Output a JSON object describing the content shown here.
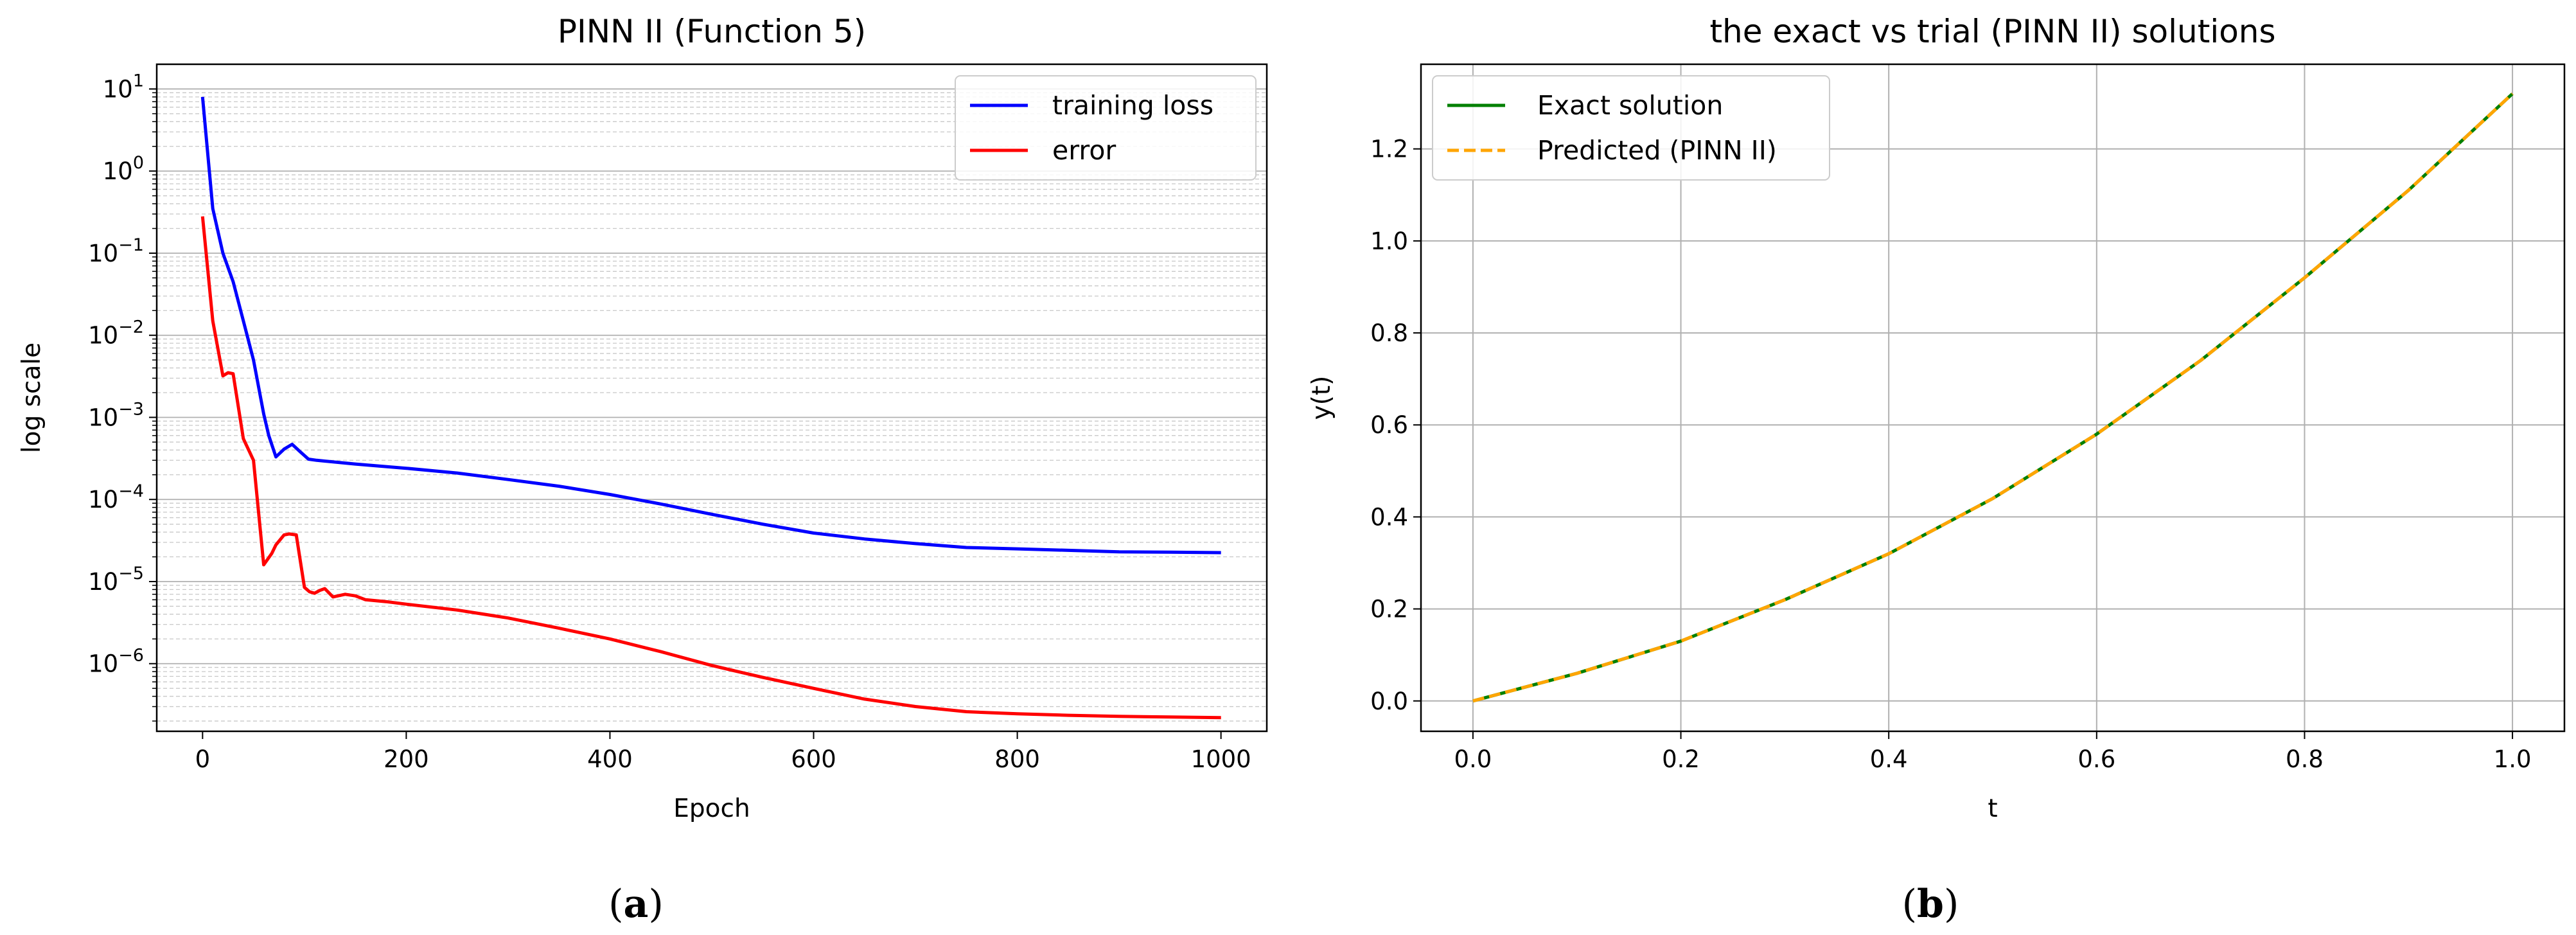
{
  "charts": [
    {
      "caption_label": "(a)",
      "chart_data": {
        "type": "line",
        "title": "PINN II (Function 5)",
        "xlabel": "Epoch",
        "ylabel": "log scale",
        "yscale": "log",
        "xlim": [
          -45,
          1045
        ],
        "ylim": [
          1.5e-07,
          20
        ],
        "xticks": [
          0,
          200,
          400,
          600,
          800,
          1000
        ],
        "xtick_labels": [
          "0",
          "200",
          "400",
          "600",
          "800",
          "1000"
        ],
        "ytick_exponents": [
          1,
          0,
          -1,
          -2,
          -3,
          -4,
          -5,
          -6
        ],
        "ytick_labels": [
          {
            "base": "10",
            "exp": "1"
          },
          {
            "base": "10",
            "exp": "0"
          },
          {
            "base": "10",
            "exp": "−1"
          },
          {
            "base": "10",
            "exp": "−2"
          },
          {
            "base": "10",
            "exp": "−3"
          },
          {
            "base": "10",
            "exp": "−4"
          },
          {
            "base": "10",
            "exp": "−5"
          },
          {
            "base": "10",
            "exp": "−6"
          }
        ],
        "grid": "major and minor",
        "legend_position": "top-right",
        "series": [
          {
            "name": "training loss",
            "color": "#0000ff",
            "x": [
              0,
              10,
              20,
              30,
              40,
              50,
              60,
              65,
              72,
              80,
              88,
              96,
              104,
              112,
              150,
              200,
              250,
              300,
              350,
              400,
              450,
              500,
              550,
              600,
              650,
              700,
              750,
              800,
              850,
              900,
              950,
              1000
            ],
            "y": [
              8,
              0.35,
              0.1,
              0.045,
              0.015,
              0.005,
              0.0011,
              0.0006,
              0.00033,
              0.00041,
              0.00047,
              0.00038,
              0.00031,
              0.0003,
              0.00027,
              0.00024,
              0.00021,
              0.000175,
              0.000145,
              0.000115,
              8.8e-05,
              6.6e-05,
              5e-05,
              3.9e-05,
              3.3e-05,
              2.9e-05,
              2.6e-05,
              2.5e-05,
              2.4e-05,
              2.3e-05,
              2.28e-05,
              2.25e-05
            ]
          },
          {
            "name": "error",
            "color": "#ff0000",
            "x": [
              0,
              10,
              20,
              25,
              30,
              40,
              50,
              60,
              68,
              72,
              80,
              85,
              92,
              100,
              105,
              110,
              115,
              120,
              128,
              140,
              150,
              160,
              180,
              200,
              250,
              300,
              350,
              400,
              450,
              500,
              550,
              600,
              650,
              700,
              750,
              800,
              850,
              900,
              950,
              1000
            ],
            "y": [
              0.28,
              0.015,
              0.0032,
              0.0035,
              0.0034,
              0.00055,
              0.0003,
              1.6e-05,
              2.2e-05,
              2.8e-05,
              3.7e-05,
              3.8e-05,
              3.7e-05,
              8.5e-06,
              7.5e-06,
              7.2e-06,
              7.8e-06,
              8.2e-06,
              6.5e-06,
              7e-06,
              6.7e-06,
              6e-06,
              5.7e-06,
              5.3e-06,
              4.5e-06,
              3.6e-06,
              2.7e-06,
              2e-06,
              1.4e-06,
              9.5e-07,
              6.8e-07,
              5e-07,
              3.7e-07,
              3e-07,
              2.6e-07,
              2.45e-07,
              2.35e-07,
              2.28e-07,
              2.24e-07,
              2.2e-07
            ]
          }
        ]
      }
    },
    {
      "caption_label": "(b)",
      "chart_data": {
        "type": "line",
        "title": "the exact vs trial (PINN II) solutions",
        "xlabel": "t",
        "ylabel": "y(t)",
        "xlim": [
          -0.05,
          1.05
        ],
        "ylim": [
          -0.066,
          1.384
        ],
        "xticks": [
          0.0,
          0.2,
          0.4,
          0.6,
          0.8,
          1.0
        ],
        "xtick_labels": [
          "0.0",
          "0.2",
          "0.4",
          "0.6",
          "0.8",
          "1.0"
        ],
        "yticks": [
          0.0,
          0.2,
          0.4,
          0.6,
          0.8,
          1.0,
          1.2
        ],
        "ytick_labels": [
          "0.0",
          "0.2",
          "0.4",
          "0.6",
          "0.8",
          "1.0",
          "1.2"
        ],
        "grid": true,
        "legend_position": "top-left",
        "series": [
          {
            "name": "Exact solution",
            "color": "#008000",
            "style": "solid",
            "x": [
              0.0,
              0.1,
              0.2,
              0.3,
              0.4,
              0.5,
              0.6,
              0.7,
              0.8,
              0.9,
              1.0
            ],
            "y": [
              0.0,
              0.06,
              0.13,
              0.22,
              0.32,
              0.44,
              0.58,
              0.74,
              0.92,
              1.11,
              1.32
            ]
          },
          {
            "name": "Predicted (PINN II)",
            "color": "#ffa500",
            "style": "dashed",
            "x": [
              0.0,
              0.1,
              0.2,
              0.3,
              0.4,
              0.5,
              0.6,
              0.7,
              0.8,
              0.9,
              1.0
            ],
            "y": [
              0.0,
              0.06,
              0.13,
              0.22,
              0.32,
              0.44,
              0.58,
              0.74,
              0.92,
              1.11,
              1.32
            ]
          }
        ]
      }
    }
  ]
}
